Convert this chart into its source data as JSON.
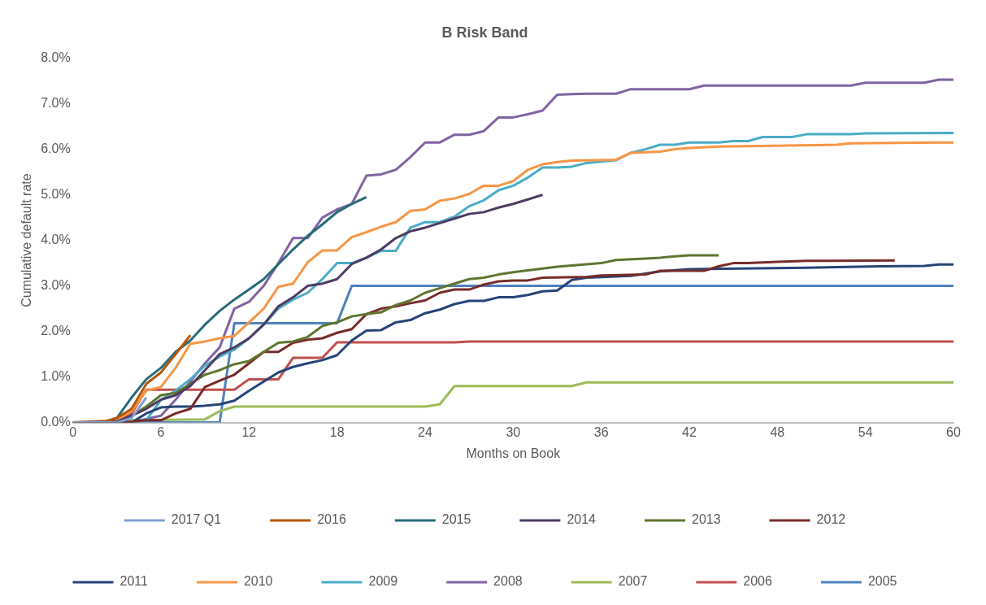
{
  "chart_data": {
    "type": "line",
    "title": "B Risk Band",
    "xlabel": "Months on Book",
    "ylabel": "Cumulative default rate",
    "xlim": [
      0,
      60
    ],
    "xticks": [
      0,
      6,
      12,
      18,
      24,
      30,
      36,
      42,
      48,
      54,
      60
    ],
    "ylim": [
      0,
      8
    ],
    "yticks": [
      {
        "value": 0,
        "label": "0.0%"
      },
      {
        "value": 1,
        "label": "1.0%"
      },
      {
        "value": 2,
        "label": "2.0%"
      },
      {
        "value": 3,
        "label": "3.0%"
      },
      {
        "value": 4,
        "label": "4.0%"
      },
      {
        "value": 5,
        "label": "5.0%"
      },
      {
        "value": 6,
        "label": "6.0%"
      },
      {
        "value": 7,
        "label": "7.0%"
      },
      {
        "value": 8,
        "label": "8.0%"
      }
    ],
    "grid": false,
    "legend": "bottom",
    "marker": "none",
    "line_style": "solid",
    "series": [
      {
        "name": "2005",
        "color": "#4f81bd",
        "x": [
          0,
          10,
          11,
          18,
          19,
          60
        ],
        "values": [
          0,
          0,
          2.18,
          2.18,
          3.0,
          3.0
        ]
      },
      {
        "name": "2006",
        "color": "#c0504d",
        "x": [
          0,
          2,
          3,
          4,
          5,
          11,
          12,
          14,
          15,
          17,
          18,
          26,
          27,
          60
        ],
        "values": [
          0,
          0,
          0.05,
          0.2,
          0.72,
          0.72,
          0.95,
          0.95,
          1.42,
          1.42,
          1.76,
          1.76,
          1.78,
          1.78
        ]
      },
      {
        "name": "2007",
        "color": "#9bbb59",
        "x": [
          0,
          3,
          4,
          9,
          10,
          11,
          24,
          25,
          26,
          34,
          35,
          60
        ],
        "values": [
          0,
          0,
          0.05,
          0.07,
          0.25,
          0.35,
          0.35,
          0.4,
          0.8,
          0.8,
          0.88,
          0.88
        ]
      },
      {
        "name": "2008",
        "color": "#8064a2",
        "x": [
          0,
          4,
          5,
          6,
          7,
          8,
          9,
          10,
          11,
          12,
          13,
          14,
          15,
          16,
          17,
          18,
          19,
          20,
          21,
          22,
          23,
          24,
          25,
          26,
          27,
          28,
          29,
          30,
          31,
          32,
          33,
          34,
          35,
          37,
          38,
          42,
          43,
          53,
          54,
          58,
          59,
          60
        ],
        "values": [
          0,
          0,
          0.08,
          0.15,
          0.5,
          0.9,
          1.3,
          1.65,
          2.5,
          2.65,
          3.0,
          3.5,
          4.05,
          4.05,
          4.5,
          4.68,
          4.8,
          5.42,
          5.45,
          5.55,
          5.83,
          6.15,
          6.15,
          6.32,
          6.32,
          6.4,
          6.7,
          6.7,
          6.77,
          6.85,
          7.2,
          7.21,
          7.22,
          7.22,
          7.32,
          7.32,
          7.4,
          7.4,
          7.46,
          7.46,
          7.53,
          7.53
        ]
      },
      {
        "name": "2009",
        "color": "#4bacc6",
        "x": [
          0,
          4,
          5,
          6,
          7,
          8,
          9,
          10,
          11,
          12,
          13,
          14,
          15,
          16,
          17,
          18,
          19,
          20,
          21,
          22,
          23,
          24,
          25,
          26,
          27,
          28,
          29,
          30,
          31,
          32,
          33,
          34,
          35,
          37,
          38,
          39,
          40,
          41,
          42,
          44,
          45,
          46,
          47,
          49,
          50,
          53,
          54,
          60
        ],
        "values": [
          0,
          0,
          0.05,
          0.5,
          0.7,
          0.95,
          1.25,
          1.45,
          1.6,
          1.85,
          2.15,
          2.5,
          2.7,
          2.85,
          3.15,
          3.5,
          3.5,
          3.62,
          3.77,
          3.77,
          4.28,
          4.4,
          4.4,
          4.52,
          4.75,
          4.88,
          5.1,
          5.2,
          5.38,
          5.6,
          5.6,
          5.62,
          5.7,
          5.76,
          5.92,
          6.0,
          6.1,
          6.1,
          6.15,
          6.15,
          6.18,
          6.18,
          6.27,
          6.27,
          6.33,
          6.33,
          6.35,
          6.36
        ]
      },
      {
        "name": "2010",
        "color": "#f79646",
        "x": [
          0,
          3,
          4,
          5,
          6,
          7,
          8,
          9,
          10,
          11,
          12,
          13,
          14,
          15,
          16,
          17,
          18,
          19,
          20,
          21,
          22,
          23,
          24,
          25,
          26,
          27,
          28,
          29,
          30,
          31,
          32,
          33,
          34,
          37,
          38,
          40,
          41,
          42,
          44,
          52,
          53,
          59,
          60
        ],
        "values": [
          0,
          0.05,
          0.25,
          0.7,
          0.78,
          1.2,
          1.73,
          1.78,
          1.85,
          1.9,
          2.2,
          2.5,
          2.98,
          3.05,
          3.52,
          3.78,
          3.78,
          4.07,
          4.18,
          4.3,
          4.4,
          4.65,
          4.68,
          4.87,
          4.92,
          5.02,
          5.2,
          5.2,
          5.3,
          5.55,
          5.67,
          5.72,
          5.75,
          5.77,
          5.92,
          5.95,
          6.0,
          6.03,
          6.06,
          6.1,
          6.13,
          6.15,
          6.15
        ]
      },
      {
        "name": "2011",
        "color": "#264478",
        "x": [
          0,
          4,
          5,
          6,
          7,
          8,
          9,
          10,
          11,
          12,
          13,
          14,
          15,
          16,
          17,
          18,
          19,
          20,
          21,
          22,
          23,
          24,
          25,
          26,
          27,
          28,
          29,
          30,
          31,
          32,
          33,
          34,
          35,
          38,
          40,
          42,
          50,
          55,
          58,
          59,
          60
        ],
        "values": [
          0,
          0,
          0.2,
          0.33,
          0.35,
          0.35,
          0.37,
          0.4,
          0.48,
          0.7,
          0.9,
          1.1,
          1.22,
          1.3,
          1.37,
          1.48,
          1.8,
          2.02,
          2.03,
          2.2,
          2.25,
          2.4,
          2.48,
          2.6,
          2.67,
          2.67,
          2.75,
          2.75,
          2.8,
          2.88,
          2.9,
          3.13,
          3.18,
          3.22,
          3.32,
          3.37,
          3.4,
          3.43,
          3.44,
          3.47,
          3.47
        ]
      },
      {
        "name": "2012",
        "color": "#772c2a",
        "x": [
          0,
          4,
          5,
          6,
          7,
          8,
          9,
          10,
          11,
          12,
          13,
          14,
          15,
          16,
          17,
          18,
          19,
          20,
          21,
          22,
          23,
          24,
          25,
          26,
          27,
          28,
          29,
          30,
          31,
          32,
          35,
          36,
          39,
          40,
          43,
          44,
          45,
          46,
          48,
          50,
          56
        ],
        "values": [
          0,
          0.02,
          0.05,
          0.05,
          0.2,
          0.3,
          0.78,
          0.92,
          1.05,
          1.3,
          1.55,
          1.55,
          1.75,
          1.82,
          1.85,
          1.97,
          2.05,
          2.38,
          2.5,
          2.55,
          2.62,
          2.68,
          2.85,
          2.92,
          2.92,
          3.03,
          3.1,
          3.12,
          3.12,
          3.18,
          3.2,
          3.23,
          3.25,
          3.33,
          3.33,
          3.43,
          3.5,
          3.5,
          3.53,
          3.55,
          3.56
        ]
      },
      {
        "name": "2013",
        "color": "#5f7530",
        "x": [
          0,
          3,
          4,
          5,
          6,
          7,
          8,
          9,
          10,
          11,
          12,
          13,
          14,
          15,
          16,
          17,
          18,
          19,
          20,
          21,
          22,
          23,
          24,
          25,
          26,
          27,
          28,
          29,
          30,
          33,
          36,
          37,
          39,
          40,
          41,
          42,
          44
        ],
        "values": [
          0,
          0,
          0.15,
          0.35,
          0.6,
          0.65,
          0.85,
          1.05,
          1.15,
          1.28,
          1.35,
          1.55,
          1.75,
          1.78,
          1.88,
          2.12,
          2.2,
          2.33,
          2.38,
          2.42,
          2.58,
          2.68,
          2.85,
          2.95,
          3.05,
          3.15,
          3.18,
          3.25,
          3.3,
          3.42,
          3.5,
          3.57,
          3.6,
          3.62,
          3.65,
          3.67,
          3.67
        ]
      },
      {
        "name": "2014",
        "color": "#4d3b62",
        "x": [
          0,
          3,
          4,
          5,
          6,
          7,
          8,
          9,
          10,
          11,
          12,
          13,
          14,
          15,
          16,
          17,
          18,
          19,
          20,
          21,
          22,
          23,
          24,
          25,
          26,
          27,
          28,
          29,
          30,
          31,
          32
        ],
        "values": [
          0,
          0.02,
          0.15,
          0.3,
          0.5,
          0.6,
          0.8,
          1.15,
          1.5,
          1.65,
          1.85,
          2.15,
          2.55,
          2.75,
          3.0,
          3.05,
          3.15,
          3.48,
          3.62,
          3.8,
          4.05,
          4.2,
          4.28,
          4.38,
          4.48,
          4.58,
          4.62,
          4.72,
          4.8,
          4.9,
          5.0
        ]
      },
      {
        "name": "2015",
        "color": "#276a7c",
        "x": [
          0,
          2,
          3,
          4,
          5,
          6,
          7,
          8,
          9,
          10,
          11,
          12,
          13,
          14,
          15,
          16,
          17,
          18,
          19,
          20
        ],
        "values": [
          0,
          0,
          0.1,
          0.55,
          0.95,
          1.2,
          1.55,
          1.8,
          2.15,
          2.45,
          2.7,
          2.92,
          3.15,
          3.48,
          3.8,
          4.1,
          4.35,
          4.62,
          4.8,
          4.95
        ]
      },
      {
        "name": "2016",
        "color": "#b65708",
        "x": [
          0,
          2,
          3,
          4,
          5,
          6,
          7,
          8
        ],
        "values": [
          0,
          0,
          0.1,
          0.3,
          0.85,
          1.1,
          1.5,
          1.92
        ]
      },
      {
        "name": "2017 Q1",
        "color": "#7f9fd0",
        "x": [
          0,
          3,
          4,
          5
        ],
        "values": [
          0,
          0,
          0.1,
          0.55
        ]
      }
    ]
  }
}
